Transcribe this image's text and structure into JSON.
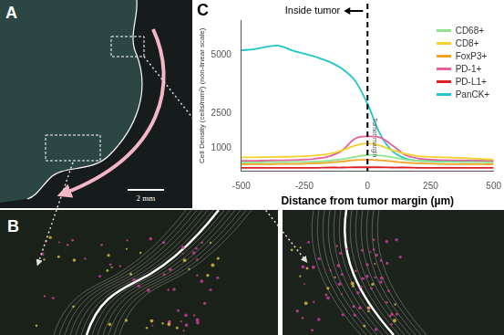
{
  "panels": {
    "A": {
      "label": "A",
      "scale_bar": "2 mm"
    },
    "B": {
      "label": "B"
    },
    "C": {
      "label": "C"
    }
  },
  "chart_data": {
    "type": "line",
    "x_label": "Distance from tumor margin (µm)",
    "y_label": "Cell Density (cells/mm²) (non-linear scale)",
    "annotations": [
      "Inside tumor",
      "Tumor margin"
    ],
    "x": [
      -500,
      -450,
      -400,
      -350,
      -300,
      -250,
      -200,
      -150,
      -100,
      -50,
      0,
      50,
      100,
      150,
      200,
      250,
      300,
      350,
      400,
      450,
      500
    ],
    "series": [
      {
        "name": "CD68+",
        "color": "#8fe38f",
        "values": [
          380,
          380,
          390,
          390,
          400,
          400,
          420,
          450,
          520,
          620,
          700,
          680,
          600,
          500,
          450,
          420,
          400,
          400,
          390,
          390,
          380
        ]
      },
      {
        "name": "CD8+",
        "color": "#f2d22e",
        "values": [
          600,
          600,
          610,
          620,
          630,
          650,
          680,
          750,
          900,
          1100,
          1200,
          1100,
          900,
          750,
          650,
          620,
          600,
          580,
          560,
          530,
          500
        ]
      },
      {
        "name": "FoxP3+",
        "color": "#f2a321",
        "values": [
          300,
          300,
          300,
          310,
          310,
          320,
          340,
          370,
          420,
          480,
          500,
          470,
          420,
          370,
          340,
          320,
          310,
          300,
          300,
          300,
          300
        ]
      },
      {
        "name": "PD-1+",
        "color": "#e6609c",
        "values": [
          450,
          450,
          460,
          470,
          480,
          500,
          550,
          650,
          900,
          1400,
          1500,
          1450,
          1100,
          700,
          550,
          500,
          480,
          470,
          460,
          450,
          450
        ]
      },
      {
        "name": "PD-L1+",
        "color": "#e02020",
        "values": [
          150,
          150,
          150,
          150,
          150,
          150,
          150,
          160,
          160,
          170,
          170,
          170,
          160,
          160,
          150,
          150,
          150,
          150,
          150,
          150,
          150
        ]
      },
      {
        "name": "PanCK+",
        "color": "#1fc6c8",
        "values": [
          5200,
          5250,
          5350,
          5400,
          5200,
          5050,
          4900,
          4700,
          4400,
          3900,
          2900,
          1600,
          850,
          550,
          450,
          450,
          450,
          450,
          450,
          450,
          430
        ]
      }
    ],
    "xlim": [
      -500,
      500
    ],
    "xticks": [
      -500,
      -250,
      0,
      250,
      500
    ],
    "ylim": [
      0,
      6500
    ],
    "yticks": [
      1000,
      2500,
      5000
    ],
    "grid": false,
    "legend": "upper right"
  }
}
